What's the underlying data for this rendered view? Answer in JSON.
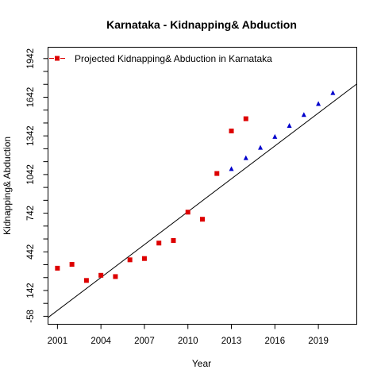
{
  "chart_data": {
    "type": "scatter",
    "title": "Karnataka  -  Kidnapping& Abduction",
    "xlabel": "Year",
    "ylabel": "Kidnapping& Abduction",
    "xlim": [
      2000.35,
      2021.65
    ],
    "ylim": [
      -120,
      2030
    ],
    "x_ticks": [
      2001,
      2004,
      2007,
      2010,
      2013,
      2016,
      2019
    ],
    "y_ticks": [
      -58,
      142,
      442,
      742,
      1042,
      1342,
      1642,
      1942
    ],
    "y_minor_ticks": [
      42,
      242,
      342,
      542,
      642,
      842,
      942,
      1142,
      1242,
      1442,
      1542,
      1742,
      1842
    ],
    "grid": false,
    "legend_position": "top-left",
    "legend": [
      {
        "label": "Projected  Kidnapping& Abduction  in  Karnataka",
        "color": "#dd0000",
        "marker": "square"
      }
    ],
    "series": [
      {
        "name": "Projected  Kidnapping& Abduction  in  Karnataka",
        "color": "#dd0000",
        "marker": "square",
        "x": [
          2001,
          2002,
          2003,
          2004,
          2005,
          2006,
          2007,
          2008,
          2009,
          2010,
          2011,
          2012,
          2013,
          2014
        ],
        "y": [
          315,
          345,
          220,
          260,
          250,
          380,
          390,
          510,
          530,
          750,
          695,
          1050,
          1380,
          1475
        ]
      },
      {
        "color": "#0000cc",
        "marker": "triangle",
        "x": [
          2013,
          2014,
          2015,
          2016,
          2017,
          2018,
          2019,
          2020
        ],
        "y": [
          1085,
          1170,
          1250,
          1335,
          1420,
          1505,
          1590,
          1675
        ]
      }
    ],
    "trend_line": {
      "x": [
        2000.35,
        2021.65
      ],
      "y": [
        -68,
        1745
      ],
      "color": "#000000"
    }
  }
}
